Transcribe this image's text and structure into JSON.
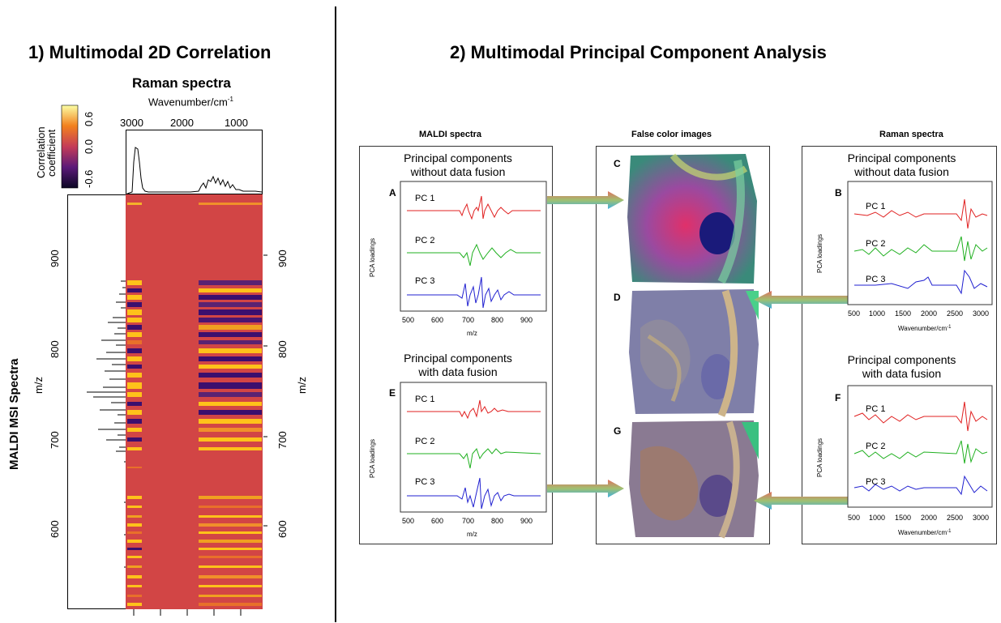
{
  "section1": {
    "title": "1) Multimodal 2D Correlation",
    "raman_title": "Raman spectra",
    "wavenumber_label": "Wavenumber/cm",
    "wavenumber_sup": "-1",
    "colorbar_title_line1": "Correlation",
    "colorbar_title_line2": "coefficient",
    "colorbar_ticks": [
      "0.6",
      "0.0",
      "-0.6"
    ],
    "top_axis_ticks": [
      "3000",
      "2000",
      "1000"
    ],
    "side_label": "MALDI MSI Spectra",
    "mz_label_left": "m/z",
    "mz_label_right": "m/z",
    "mz_ticks": [
      "900",
      "800",
      "700",
      "600"
    ],
    "colors": {
      "background": "#d24545",
      "hot": "#ffc21a",
      "cold": "#3b0f6e"
    }
  },
  "section2": {
    "title": "2) Multimodal Principal Component Analysis",
    "col_maldi": "MALDI spectra",
    "col_false": "False color images",
    "col_raman": "Raman spectra",
    "pc_without_line1": "Principal components",
    "pc_without_line2": "without data fusion",
    "pc_with_line1": "Principal components",
    "pc_with_line2": "with data fusion",
    "pc_labels": [
      "PC 1",
      "PC 2",
      "PC 3"
    ],
    "pca_ylabel": "PCA loadings",
    "maldi_xticks": [
      "500",
      "600",
      "700",
      "800",
      "900"
    ],
    "maldi_xlabel": "m/z",
    "raman_xticks": [
      "500",
      "1000",
      "1500",
      "2000",
      "2500",
      "3000"
    ],
    "raman_xlabel": "Wavenumber/cm",
    "raman_xlabel_sup": "-1",
    "panel_letters": {
      "A": "A",
      "B": "B",
      "C": "C",
      "D": "D",
      "E": "E",
      "F": "F",
      "G": "G"
    }
  }
}
